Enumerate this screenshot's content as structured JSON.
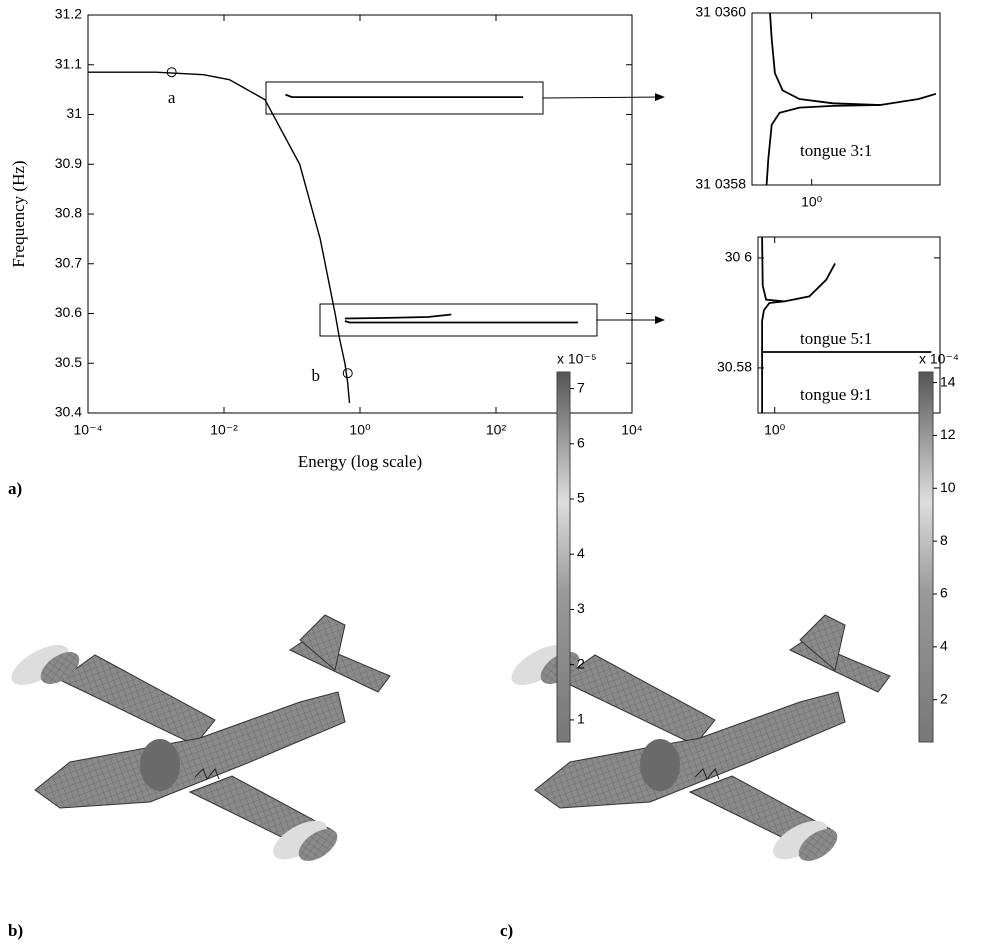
{
  "chart_data": [
    {
      "type": "line",
      "panel": "a)",
      "xlabel": "Energy (log scale)",
      "ylabel": "Frequency (Hz)",
      "xscale": "log",
      "xlim": [
        0.0001,
        10000
      ],
      "ylim": [
        30.4,
        31.2
      ],
      "xticks": [
        {
          "value": 0.0001,
          "label": "10⁻⁴"
        },
        {
          "value": 0.01,
          "label": "10⁻²"
        },
        {
          "value": 1,
          "label": "10⁰"
        },
        {
          "value": 100,
          "label": "10²"
        },
        {
          "value": 10000,
          "label": "10⁴"
        }
      ],
      "yticks": [
        30.4,
        30.5,
        30.6,
        30.7,
        30.8,
        30.9,
        31,
        31.1,
        31.2
      ],
      "series": [
        {
          "color": "#000000",
          "x": [
            0.0001,
            0.001,
            0.005,
            0.012,
            0.04,
            0.13,
            0.26,
            0.43,
            0.5,
            0.6,
            0.66,
            0.7
          ],
          "values": [
            31.085,
            31.085,
            31.08,
            31.07,
            31.03,
            30.9,
            30.75,
            30.6,
            30.55,
            30.5,
            30.46,
            30.42
          ]
        },
        {
          "color": "#000000",
          "x": [
            0.08,
            0.1,
            250
          ],
          "values": [
            31.04,
            31.035,
            31.035
          ]
        },
        {
          "color": "#000000",
          "x": [
            0.6,
            2,
            10,
            22
          ],
          "values": [
            30.59,
            30.591,
            30.593,
            30.598
          ]
        },
        {
          "color": "#000000",
          "x": [
            0.6,
            0.7,
            1600
          ],
          "values": [
            30.585,
            30.582,
            30.582
          ]
        }
      ],
      "markers": [
        {
          "label": "a",
          "x": 0.0017,
          "y": 31.085
        },
        {
          "label": "b",
          "x": 0.66,
          "y": 30.48
        }
      ]
    },
    {
      "type": "line",
      "xscale": "log",
      "xlim": [
        0.6,
        3
      ],
      "ylim": [
        31.0358,
        31.036
      ],
      "xticks": [
        {
          "value": 1,
          "label": "10⁰"
        }
      ],
      "yticks": [
        {
          "value": 31.0358,
          "label": "31 0358"
        },
        {
          "value": 31.036,
          "label": "31 0360"
        }
      ],
      "series": [
        {
          "color": "#000000",
          "x": [
            0.7,
            0.71,
            0.73,
            0.78,
            0.9,
            1.2,
            1.8,
            2.5,
            2.9
          ],
          "values": [
            31.036,
            31.03597,
            31.03593,
            31.03591,
            31.0359,
            31.035895,
            31.035893,
            31.0359,
            31.035906
          ]
        },
        {
          "color": "#000000",
          "x": [
            0.68,
            0.69,
            0.71,
            0.76,
            0.9,
            1.2,
            1.8
          ],
          "values": [
            31.0358,
            31.03583,
            31.03587,
            31.035884,
            31.03589,
            31.035892,
            31.035893
          ]
        }
      ],
      "annotations": [
        "tongue 3:1"
      ]
    },
    {
      "type": "line",
      "xscale": "log",
      "xlim": [
        0.85,
        5
      ],
      "ylim": [
        30.5718,
        30.6038
      ],
      "xticks": [
        {
          "value": 1,
          "label": "10⁰"
        }
      ],
      "yticks": [
        30.58,
        {
          "value": 30.6,
          "label": "30 6"
        }
      ],
      "series": [
        {
          "color": "#000000",
          "x": [
            0.885,
            0.89,
            0.92,
            1.1,
            1.4,
            1.65,
            1.8
          ],
          "values": [
            30.6038,
            30.595,
            30.5924,
            30.5921,
            30.593,
            30.596,
            30.599
          ]
        },
        {
          "color": "#000000",
          "x": [
            0.885,
            0.885,
            0.9,
            0.95,
            1.1
          ],
          "values": [
            30.5718,
            30.5885,
            30.5905,
            30.5918,
            30.5921
          ]
        },
        {
          "color": "#000000",
          "x": [
            0.885,
            4.6
          ],
          "values": [
            30.5829,
            30.5829
          ]
        }
      ],
      "annotations": [
        "tongue 5:1",
        "tongue 9:1"
      ]
    },
    {
      "type": "colorbar",
      "panel": "b)",
      "label": "x 10⁻⁵",
      "ylim": [
        0.6,
        7.3
      ],
      "yticks": [
        1,
        2,
        3,
        4,
        5,
        6,
        7
      ]
    },
    {
      "type": "colorbar",
      "panel": "c)",
      "label": "x 10⁻⁴",
      "ylim": [
        0.4,
        14.4
      ],
      "yticks": [
        2,
        4,
        6,
        8,
        10,
        12,
        14
      ]
    }
  ]
}
